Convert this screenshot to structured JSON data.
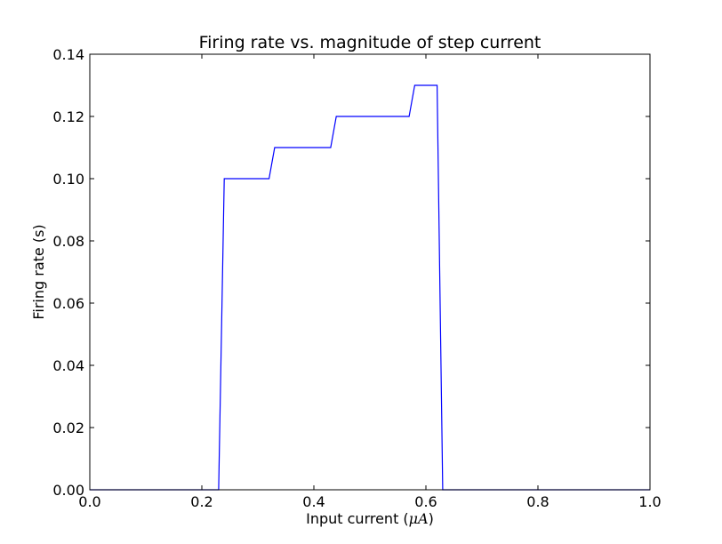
{
  "chart_data": {
    "type": "line",
    "title": "Firing rate vs. magnitude of step current",
    "xlabel_prefix": "Input current (",
    "xlabel_unit": "μA",
    "xlabel_suffix": ")",
    "ylabel": "Firing rate (s)",
    "xlim": [
      0.0,
      1.0
    ],
    "ylim": [
      0.0,
      0.14
    ],
    "grid": false,
    "xticks": [
      "0.0",
      "0.2",
      "0.4",
      "0.6",
      "0.8",
      "1.0"
    ],
    "yticks": [
      "0.00",
      "0.02",
      "0.04",
      "0.06",
      "0.08",
      "0.10",
      "0.12",
      "0.14"
    ],
    "series": [
      {
        "color": "#0000ff",
        "x": [
          0.0,
          0.23,
          0.24,
          0.32,
          0.33,
          0.43,
          0.44,
          0.57,
          0.58,
          0.62,
          0.63,
          1.0
        ],
        "y": [
          0.0,
          0.0,
          0.1,
          0.1,
          0.11,
          0.11,
          0.12,
          0.12,
          0.13,
          0.13,
          0.0,
          0.0
        ]
      }
    ]
  }
}
